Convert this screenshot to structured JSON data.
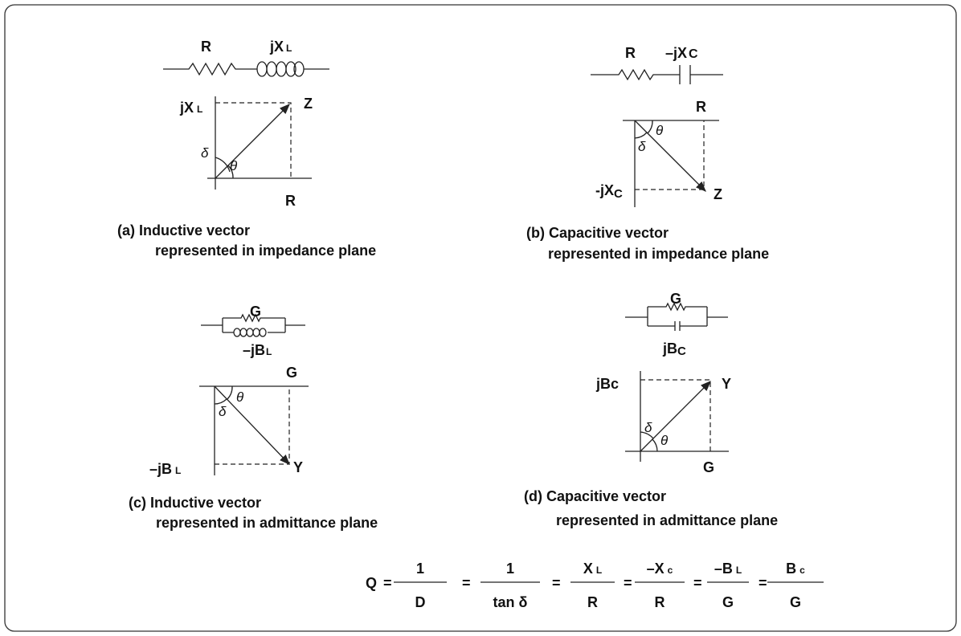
{
  "panels": {
    "a": {
      "circuit_labels": [
        {
          "text": "R"
        },
        {
          "text": "jX",
          "sub": "L"
        }
      ],
      "vertical_label": {
        "text": "jX",
        "sub": "L"
      },
      "horizontal_label": "R",
      "vector_label": "Z",
      "delta": "δ",
      "theta": "θ",
      "caption": [
        "(a) Inductive vector",
        "represented in impedance plane"
      ]
    },
    "b": {
      "circuit_labels": [
        {
          "text": "R"
        },
        {
          "text": "–jX",
          "sub": "C"
        }
      ],
      "vertical_label": {
        "text": "-jX",
        "sub": "C"
      },
      "horizontal_label": "R",
      "vector_label": "Z",
      "delta": "δ",
      "theta": "θ",
      "caption": [
        "(b) Capacitive vector",
        "represented in impedance plane"
      ]
    },
    "c": {
      "circuit_labels": [
        {
          "text": "G"
        },
        {
          "text": "–jB",
          "sub": "L"
        }
      ],
      "vertical_label": {
        "text": "–jB",
        "sub": "L"
      },
      "horizontal_label": "G",
      "vector_label": "Y",
      "delta": "δ",
      "theta": "θ",
      "caption": [
        "(c) Inductive vector",
        "represented in admittance plane"
      ]
    },
    "d": {
      "circuit_labels": [
        {
          "text": "G"
        },
        {
          "text": "jB",
          "sub": "C"
        }
      ],
      "vertical_label": {
        "text": "jBc"
      },
      "horizontal_label": "G",
      "vector_label": "Y",
      "delta": "δ",
      "theta": "θ",
      "caption": [
        "(d) Capacitive vector",
        "represented in admittance plane"
      ]
    }
  },
  "formula": {
    "lhs": "Q",
    "equals": "=",
    "fractions": [
      {
        "num": {
          "text": "1"
        },
        "den": "D"
      },
      {
        "num": {
          "text": "1"
        },
        "den": "tan δ"
      },
      {
        "num": {
          "text": "X",
          "sub": "L"
        },
        "den": "R"
      },
      {
        "num": {
          "text": "–X",
          "sub": "c"
        },
        "den": "R"
      },
      {
        "num": {
          "text": "–B",
          "sub": "L"
        },
        "den": "G"
      },
      {
        "num": {
          "text": "B",
          "sub": "c"
        },
        "den": "G"
      }
    ]
  }
}
